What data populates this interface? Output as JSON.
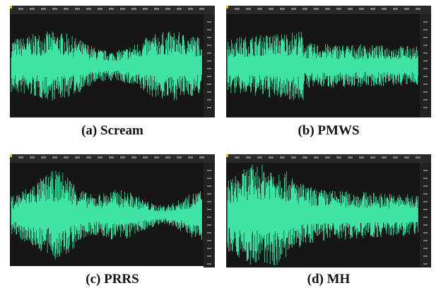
{
  "panels": [
    {
      "caption": "(a) Scream"
    },
    {
      "caption": "(b) PMWS"
    },
    {
      "caption": "(c) PRRS"
    },
    {
      "caption": "(d) MH"
    }
  ]
}
